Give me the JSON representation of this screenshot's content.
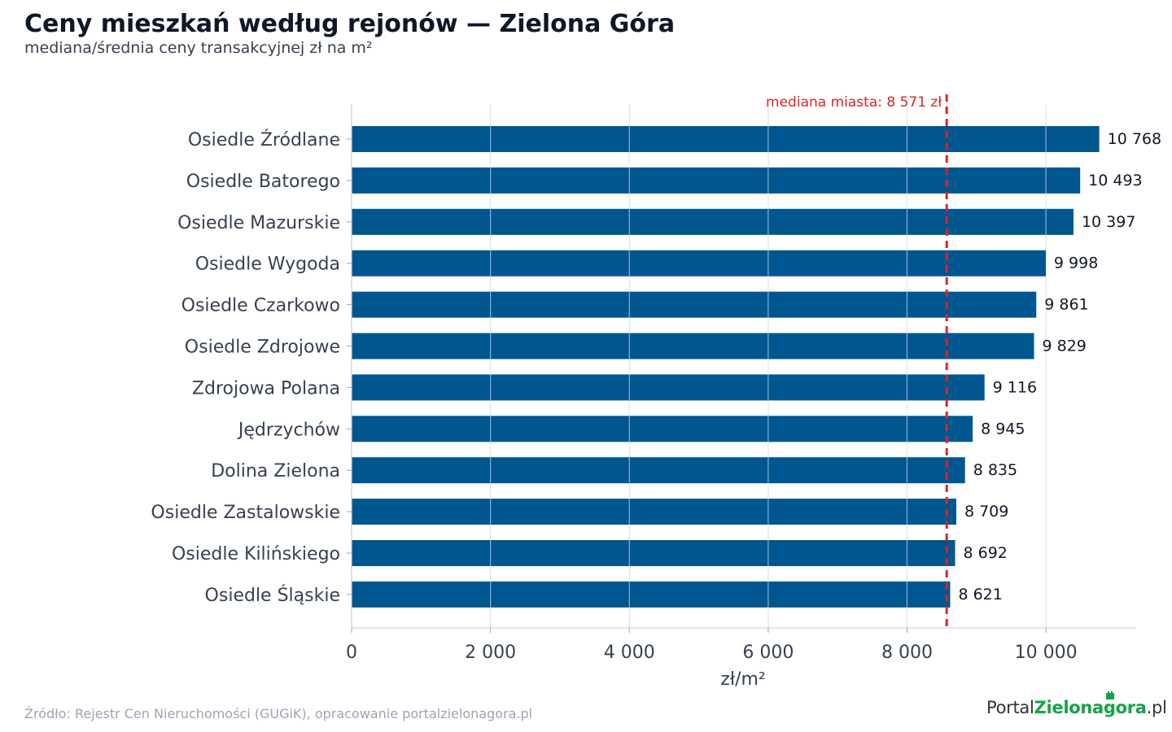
{
  "title": "Ceny mieszkań według rejonów — Zielona Góra",
  "subtitle": "mediana/średnia ceny transakcyjnej zł na m²",
  "source": "Źródło: Rejestr Cen Nieruchomości (GUGiK), opracowanie portalzielonagora.pl",
  "logo": {
    "part1": "Portal",
    "part2": "Zielonagora",
    "part3": ".pl"
  },
  "colors": {
    "bar": "#00568f",
    "median_line": "#d62728",
    "grid": "#e5e7eb",
    "logo_green": "#17a24a"
  },
  "chart_data": {
    "type": "bar",
    "orientation": "horizontal",
    "categories": [
      "Osiedle Źródlane",
      "Osiedle Batorego",
      "Osiedle Mazurskie",
      "Osiedle Wygoda",
      "Osiedle Czarkowo",
      "Osiedle Zdrojowe",
      "Zdrojowa Polana",
      "Jędrzychów",
      "Dolina Zielona",
      "Osiedle Zastalowskie",
      "Osiedle Kilińskiego",
      "Osiedle Śląskie"
    ],
    "values": [
      10768,
      10493,
      10397,
      9998,
      9861,
      9829,
      9116,
      8945,
      8835,
      8709,
      8692,
      8621
    ],
    "value_labels": [
      "10 768",
      "10 493",
      "10 397",
      "9 998",
      "9 861",
      "9 829",
      "9 116",
      "8 945",
      "8 835",
      "8 709",
      "8 692",
      "8 621"
    ],
    "xlabel": "zł/m²",
    "xlim": [
      0,
      11300
    ],
    "xticks": [
      0,
      2000,
      4000,
      6000,
      8000,
      10000
    ],
    "xtick_labels": [
      "0",
      "2 000",
      "4 000",
      "6 000",
      "8 000",
      "10 000"
    ],
    "grid": true,
    "reference_line": {
      "value": 8571,
      "label": "mediana miasta: 8 571 zł"
    }
  }
}
